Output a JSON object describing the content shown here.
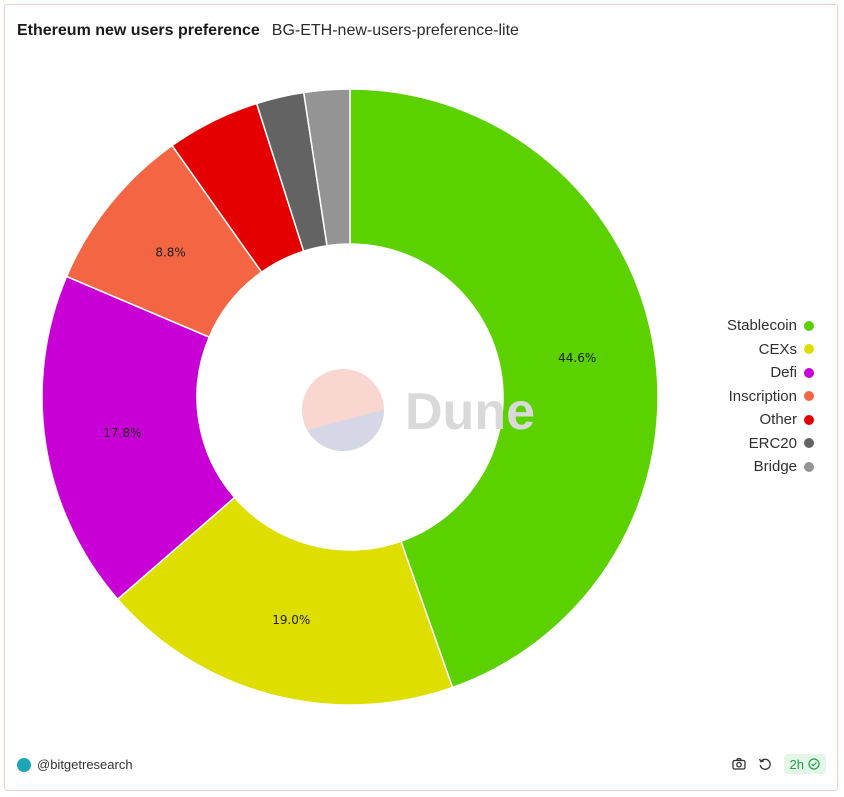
{
  "header": {
    "title": "Ethereum new users preference",
    "subtitle": "BG-ETH-new-users-preference-lite"
  },
  "chart_data": {
    "type": "pie",
    "donut": true,
    "categories": [
      "Stablecoin",
      "CEXs",
      "Defi",
      "Inscription",
      "Other",
      "ERC20",
      "Bridge"
    ],
    "values": [
      44.6,
      19.0,
      17.8,
      8.8,
      4.9,
      2.5,
      2.4
    ],
    "labels": [
      "44.6%",
      "19.0%",
      "17.8%",
      "8.8%",
      "",
      "",
      ""
    ],
    "colors": [
      "#5bd100",
      "#dede00",
      "#c800d6",
      "#f46543",
      "#e40000",
      "#636363",
      "#949494"
    ],
    "legend_position": "right",
    "watermark": "Dune"
  },
  "legend": {
    "items": [
      {
        "label": "Stablecoin",
        "color": "#5bd100"
      },
      {
        "label": "CEXs",
        "color": "#dede00"
      },
      {
        "label": "Defi",
        "color": "#c800d6"
      },
      {
        "label": "Inscription",
        "color": "#f46543"
      },
      {
        "label": "Other",
        "color": "#e40000"
      },
      {
        "label": "ERC20",
        "color": "#636363"
      },
      {
        "label": "Bridge",
        "color": "#949494"
      }
    ]
  },
  "footer": {
    "author": "@bitgetresearch",
    "refresh_badge": "2h",
    "icons": [
      "camera-icon",
      "refresh-icon",
      "check-circle-icon"
    ]
  }
}
